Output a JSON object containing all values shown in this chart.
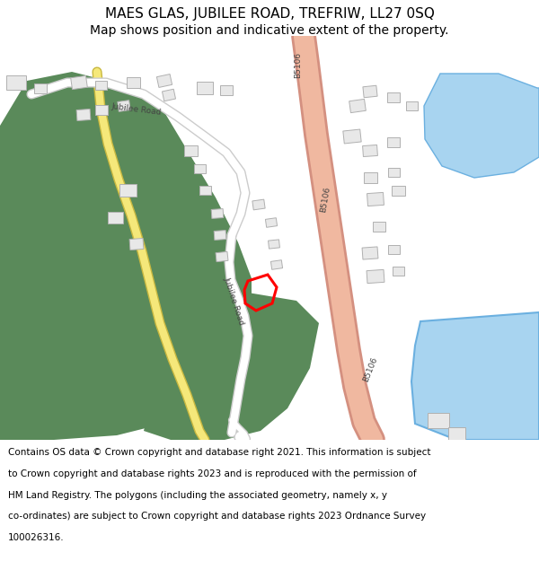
{
  "title": "MAES GLAS, JUBILEE ROAD, TREFRIW, LL27 0SQ",
  "subtitle": "Map shows position and indicative extent of the property.",
  "footer_lines": [
    "Contains OS data © Crown copyright and database right 2021. This information is subject",
    "to Crown copyright and database rights 2023 and is reproduced with the permission of",
    "HM Land Registry. The polygons (including the associated geometry, namely x, y",
    "co-ordinates) are subject to Crown copyright and database rights 2023 Ordnance Survey",
    "100026316."
  ],
  "map_bg": "#ffffff",
  "green_color": "#5a8a5a",
  "road_main_color": "#f0b8a0",
  "road_main_outline": "#d49080",
  "yellow_road_color": "#f5e87a",
  "yellow_road_outline": "#c8b840",
  "blue_water_color": "#a8d4f0",
  "blue_water_outline": "#6bb0e0",
  "building_fill": "#e8e8e8",
  "building_outline": "#b0b0b0",
  "red_polygon": "#ff0000",
  "white_road": "#ffffff",
  "white_road_outline": "#cccccc",
  "title_fontsize": 11,
  "subtitle_fontsize": 10,
  "footer_fontsize": 7.5
}
